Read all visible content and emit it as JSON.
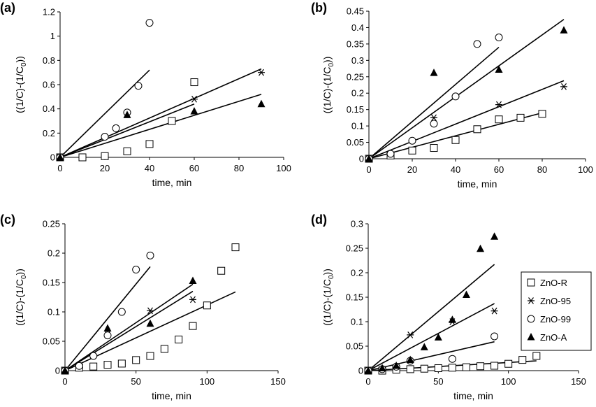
{
  "legend": {
    "entries": [
      {
        "name": "ZnO-R",
        "marker": "square"
      },
      {
        "name": "ZnO-95",
        "marker": "star"
      },
      {
        "name": "ZnO-99",
        "marker": "circle"
      },
      {
        "name": "ZnO-A",
        "marker": "triangle"
      }
    ]
  },
  "chart_data": [
    {
      "panel": "(a)",
      "type": "scatter",
      "xlabel": "time, min",
      "ylabel": "((1/C)-(1/C0))",
      "xlim": [
        0,
        100
      ],
      "ylim": [
        0,
        1.2
      ],
      "xticks": [
        "0",
        "20",
        "40",
        "60",
        "80",
        "100"
      ],
      "yticks": [
        "0",
        "0.2",
        "0.4",
        "0.6",
        "0.8",
        "1",
        "1.2"
      ],
      "series": [
        {
          "name": "ZnO-R",
          "marker": "square",
          "x": [
            0,
            10,
            20,
            30,
            40,
            50,
            60
          ],
          "y": [
            0,
            0,
            0.01,
            0.05,
            0.11,
            0.3,
            0.62
          ]
        },
        {
          "name": "ZnO-95",
          "marker": "star",
          "x": [
            0,
            30,
            60,
            90
          ],
          "y": [
            0,
            0.36,
            0.48,
            0.7
          ]
        },
        {
          "name": "ZnO-99",
          "marker": "circle",
          "x": [
            0,
            20,
            25,
            30,
            35,
            40
          ],
          "y": [
            0,
            0.17,
            0.24,
            0.37,
            0.59,
            1.11
          ]
        },
        {
          "name": "ZnO-A",
          "marker": "triangle",
          "x": [
            0,
            30,
            60,
            90
          ],
          "y": [
            0,
            0.35,
            0.38,
            0.44
          ]
        }
      ],
      "fits": [
        {
          "series": "ZnO-99",
          "x": [
            0,
            40
          ],
          "y": [
            0,
            0.72
          ]
        },
        {
          "series": "ZnO-95",
          "x": [
            0,
            90
          ],
          "y": [
            0,
            0.73
          ]
        },
        {
          "series": "ZnO-R",
          "x": [
            0,
            60
          ],
          "y": [
            0,
            0.44
          ]
        },
        {
          "series": "ZnO-A",
          "x": [
            0,
            90
          ],
          "y": [
            0,
            0.52
          ]
        }
      ]
    },
    {
      "panel": "(b)",
      "type": "scatter",
      "xlabel": "time, min",
      "ylabel": "((1/C)-(1/C0))",
      "xlim": [
        0,
        100
      ],
      "ylim": [
        0,
        0.45
      ],
      "xticks": [
        "0",
        "20",
        "40",
        "60",
        "80",
        "100"
      ],
      "yticks": [
        "0",
        "0.05",
        "0.1",
        "0.15",
        "0.2",
        "0.25",
        "0.3",
        "0.35",
        "0.4",
        "0.45"
      ],
      "series": [
        {
          "name": "ZnO-R",
          "marker": "square",
          "x": [
            0,
            10,
            20,
            30,
            40,
            50,
            60,
            70,
            80
          ],
          "y": [
            0,
            0.01,
            0.025,
            0.033,
            0.057,
            0.09,
            0.12,
            0.125,
            0.137
          ]
        },
        {
          "name": "ZnO-95",
          "marker": "star",
          "x": [
            0,
            30,
            60,
            90
          ],
          "y": [
            0,
            0.125,
            0.165,
            0.22
          ]
        },
        {
          "name": "ZnO-99",
          "marker": "circle",
          "x": [
            0,
            10,
            20,
            30,
            40,
            50,
            60
          ],
          "y": [
            0,
            0.015,
            0.055,
            0.107,
            0.19,
            0.35,
            0.37
          ]
        },
        {
          "name": "ZnO-A",
          "marker": "triangle",
          "x": [
            0,
            30,
            60,
            90
          ],
          "y": [
            0,
            0.262,
            0.272,
            0.392
          ]
        }
      ],
      "fits": [
        {
          "series": "ZnO-99",
          "x": [
            0,
            60
          ],
          "y": [
            0,
            0.34
          ]
        },
        {
          "series": "ZnO-A",
          "x": [
            0,
            90
          ],
          "y": [
            0,
            0.425
          ]
        },
        {
          "series": "ZnO-95",
          "x": [
            0,
            90
          ],
          "y": [
            0,
            0.238
          ]
        },
        {
          "series": "ZnO-R",
          "x": [
            0,
            80
          ],
          "y": [
            0,
            0.14
          ]
        }
      ]
    },
    {
      "panel": "(c)",
      "type": "scatter",
      "xlabel": "time, min",
      "ylabel": "((1/C)-(1/C0))",
      "xlim": [
        0,
        150
      ],
      "ylim": [
        0,
        0.25
      ],
      "xticks": [
        "0",
        "50",
        "100",
        "150"
      ],
      "yticks": [
        "0",
        "0.05",
        "0.1",
        "0.15",
        "0.2",
        "0.25"
      ],
      "series": [
        {
          "name": "ZnO-R",
          "marker": "square",
          "x": [
            0,
            10,
            20,
            30,
            40,
            50,
            60,
            70,
            80,
            90,
            100,
            110,
            120
          ],
          "y": [
            0,
            0.005,
            0.007,
            0.01,
            0.012,
            0.018,
            0.025,
            0.037,
            0.053,
            0.076,
            0.111,
            0.17,
            0.21
          ]
        },
        {
          "name": "ZnO-95",
          "marker": "star",
          "x": [
            0,
            30,
            60,
            90
          ],
          "y": [
            0,
            0.062,
            0.102,
            0.121
          ]
        },
        {
          "name": "ZnO-99",
          "marker": "circle",
          "x": [
            0,
            10,
            20,
            30,
            40,
            50,
            60
          ],
          "y": [
            0,
            0.008,
            0.025,
            0.06,
            0.1,
            0.172,
            0.196
          ]
        },
        {
          "name": "ZnO-A",
          "marker": "triangle",
          "x": [
            0,
            30,
            60,
            90
          ],
          "y": [
            0,
            0.072,
            0.08,
            0.153
          ]
        }
      ],
      "fits": [
        {
          "series": "ZnO-99",
          "x": [
            0,
            60
          ],
          "y": [
            0,
            0.177
          ]
        },
        {
          "series": "ZnO-A",
          "x": [
            0,
            90
          ],
          "y": [
            0,
            0.147
          ]
        },
        {
          "series": "ZnO-95",
          "x": [
            0,
            90
          ],
          "y": [
            0,
            0.135
          ]
        },
        {
          "series": "ZnO-R",
          "x": [
            0,
            120
          ],
          "y": [
            0,
            0.134
          ]
        }
      ]
    },
    {
      "panel": "(d)",
      "type": "scatter",
      "xlabel": "time, min",
      "ylabel": "((1/C)-(1/C0))",
      "xlim": [
        0,
        150
      ],
      "ylim": [
        0,
        0.3
      ],
      "xticks": [
        "0",
        "50",
        "100",
        "150"
      ],
      "yticks": [
        "0",
        "0.05",
        "0.1",
        "0.15",
        "0.2",
        "0.25",
        "0.3"
      ],
      "series": [
        {
          "name": "ZnO-R",
          "marker": "square",
          "x": [
            0,
            10,
            20,
            30,
            40,
            50,
            60,
            70,
            80,
            90,
            100,
            110,
            120
          ],
          "y": [
            0,
            0,
            0.002,
            0.003,
            0.004,
            0.005,
            0.006,
            0.007,
            0.009,
            0.01,
            0.014,
            0.022,
            0.03
          ]
        },
        {
          "name": "ZnO-95",
          "marker": "star",
          "x": [
            0,
            30,
            60,
            90
          ],
          "y": [
            0,
            0.073,
            0.1,
            0.122
          ]
        },
        {
          "name": "ZnO-99",
          "marker": "circle",
          "x": [
            0,
            10,
            20,
            30,
            60,
            90
          ],
          "y": [
            0,
            0.003,
            0.008,
            0.02,
            0.024,
            0.07
          ]
        },
        {
          "name": "ZnO-A",
          "marker": "triangle",
          "x": [
            0,
            10,
            20,
            30,
            40,
            50,
            60,
            70,
            80,
            90
          ],
          "y": [
            0,
            0.005,
            0.01,
            0.022,
            0.048,
            0.068,
            0.104,
            0.155,
            0.249,
            0.274
          ]
        }
      ],
      "fits": [
        {
          "series": "ZnO-A",
          "x": [
            0,
            90
          ],
          "y": [
            0,
            0.217
          ]
        },
        {
          "series": "ZnO-95",
          "x": [
            0,
            90
          ],
          "y": [
            0,
            0.137
          ]
        },
        {
          "series": "ZnO-99",
          "x": [
            0,
            90
          ],
          "y": [
            0,
            0.059
          ]
        },
        {
          "series": "ZnO-R",
          "x": [
            0,
            120
          ],
          "y": [
            0,
            0.02
          ]
        }
      ]
    }
  ]
}
